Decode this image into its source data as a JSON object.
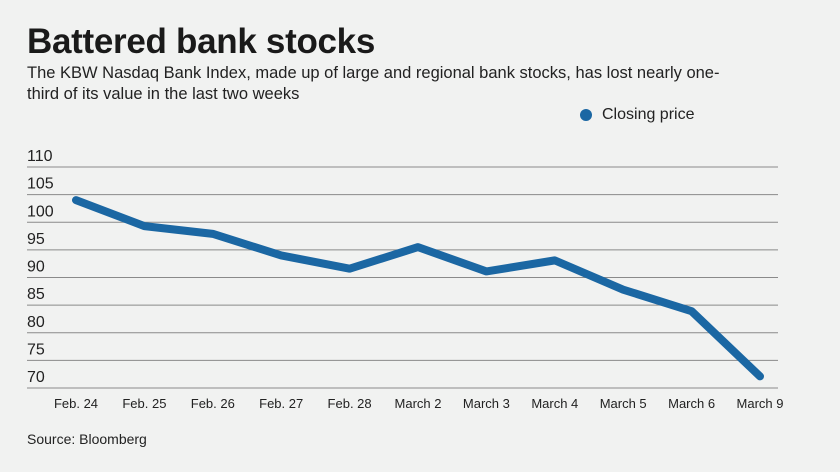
{
  "chart_data": {
    "type": "line",
    "title": "Battered bank stocks",
    "subtitle": "The KBW Nasdaq Bank Index, made up of large and regional bank stocks, has lost nearly one-third of its value in the last two weeks",
    "categories": [
      "Feb. 24",
      "Feb. 25",
      "Feb. 26",
      "Feb. 27",
      "Feb. 28",
      "March 2",
      "March 3",
      "March 4",
      "March 5",
      "March 6",
      "March 9"
    ],
    "series": [
      {
        "name": "Closing price",
        "values": [
          104.0,
          99.3,
          97.9,
          94.0,
          91.6,
          95.5,
          91.1,
          93.1,
          87.8,
          83.9,
          72.1
        ],
        "color": "#1b67a3"
      }
    ],
    "yticks": [
      110,
      105,
      100,
      95,
      90,
      85,
      80,
      75,
      70
    ],
    "ylim": [
      70,
      110
    ],
    "xlabel": "",
    "ylabel": "",
    "grid": true,
    "legend": "top-right",
    "source": "Source: Bloomberg"
  }
}
